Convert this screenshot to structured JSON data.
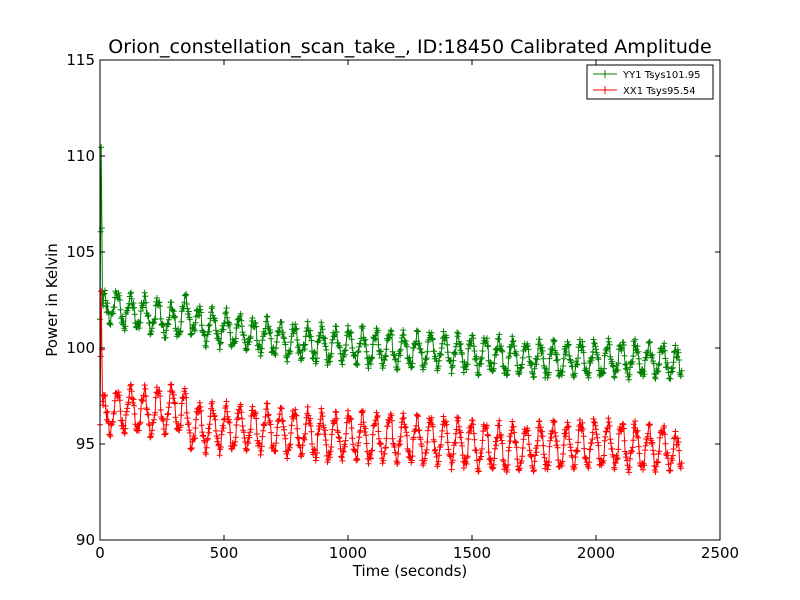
{
  "chart_data": {
    "type": "line",
    "title": "Orion_constellation_scan_take_, ID:18450 Calibrated Amplitude",
    "xlabel": "Time (seconds)",
    "ylabel": "Power in Kelvin",
    "xlim": [
      0,
      2500
    ],
    "ylim": [
      90,
      115
    ],
    "xticks": [
      0,
      500,
      1000,
      1500,
      2000,
      2500
    ],
    "yticks": [
      90,
      95,
      100,
      105,
      110,
      115
    ],
    "grid": false,
    "legend_position": "top-right",
    "series": [
      {
        "name": "YY1 Tsys101.95",
        "color": "#008000",
        "marker": "+",
        "oscillation_period": 55,
        "x": [
          0,
          5,
          10,
          20,
          50,
          100,
          200,
          300,
          350,
          400,
          500,
          600,
          700,
          800,
          900,
          1000,
          1100,
          1200,
          1300,
          1400,
          1500,
          1600,
          1700,
          1800,
          1900,
          2000,
          2100,
          2200,
          2300,
          2345
        ],
        "center": [
          101.5,
          110.3,
          101.8,
          102.2,
          102.2,
          101.9,
          101.7,
          101.3,
          101.8,
          101.2,
          101.0,
          100.7,
          100.5,
          100.3,
          100.2,
          100.1,
          100.0,
          99.9,
          99.9,
          99.8,
          99.7,
          99.6,
          99.5,
          99.4,
          99.4,
          99.4,
          99.4,
          99.4,
          99.3,
          99.0
        ],
        "amplitude": [
          0.0,
          0.0,
          0.6,
          0.7,
          0.8,
          0.8,
          0.8,
          0.8,
          0.8,
          0.8,
          0.8,
          0.8,
          0.8,
          0.8,
          0.8,
          0.8,
          0.8,
          0.8,
          0.8,
          0.8,
          0.8,
          0.8,
          0.8,
          0.8,
          0.8,
          0.8,
          0.8,
          0.8,
          0.8,
          0.6
        ]
      },
      {
        "name": "XX1 Tsys95.54",
        "color": "#ff0000",
        "marker": "+",
        "oscillation_period": 55,
        "x": [
          0,
          5,
          10,
          20,
          50,
          100,
          200,
          300,
          340,
          350,
          400,
          500,
          600,
          700,
          800,
          900,
          1000,
          1100,
          1200,
          1300,
          1400,
          1500,
          1600,
          1700,
          1800,
          1900,
          2000,
          2100,
          2200,
          2300,
          2345
        ],
        "center": [
          96.0,
          102.8,
          96.5,
          96.6,
          96.6,
          96.8,
          96.6,
          96.8,
          96.8,
          95.9,
          95.9,
          95.8,
          95.8,
          95.7,
          95.6,
          95.4,
          95.4,
          95.3,
          95.3,
          95.2,
          95.1,
          95.0,
          94.8,
          94.8,
          94.9,
          94.9,
          95.0,
          94.9,
          94.8,
          94.8,
          94.2
        ],
        "amplitude": [
          0.0,
          0.0,
          0.8,
          0.9,
          1.0,
          1.1,
          1.1,
          1.1,
          1.1,
          1.1,
          1.1,
          1.1,
          1.1,
          1.1,
          1.1,
          1.1,
          1.1,
          1.1,
          1.1,
          1.1,
          1.1,
          1.1,
          1.1,
          1.1,
          1.1,
          1.1,
          1.1,
          1.1,
          1.1,
          1.1,
          0.6
        ]
      }
    ]
  }
}
